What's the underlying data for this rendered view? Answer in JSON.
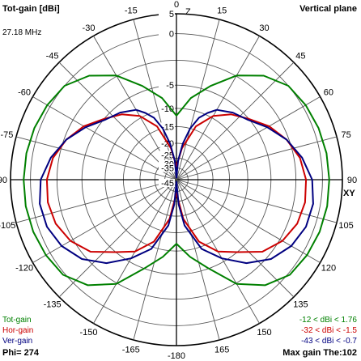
{
  "header": {
    "title": "Tot-gain [dBi]",
    "frequency": "27.18 MHz",
    "plane": "Vertical plane"
  },
  "footer": {
    "phi": "Phi= 274",
    "max_gain": "Max gain The:102"
  },
  "legend": [
    {
      "name": "Tot-gain",
      "range": "-12 < dBi < 1.76",
      "color": "#008000"
    },
    {
      "name": "Hor-gain",
      "range": "-32 < dBi < -1.5",
      "color": "#cc0000"
    },
    {
      "name": "Ver-gain",
      "range": "-43 < dBi < -0.7",
      "color": "#000080"
    }
  ],
  "chart_data": {
    "type": "polar",
    "title": "Tot-gain [dBi]",
    "axis_labels": {
      "z": "Z",
      "xy": "XY"
    },
    "radial_scale_dbi": [
      5,
      0,
      -5,
      -10,
      -15,
      -20,
      -25,
      -30,
      -35,
      -45
    ],
    "radial_labels": [
      "5",
      "0",
      "-5",
      "-10",
      "-15",
      "-20",
      "-25",
      "-30",
      "-35",
      "-45"
    ],
    "angle_labels": [
      "0",
      "15",
      "30",
      "45",
      "60",
      "75",
      "90",
      "105",
      "120",
      "135",
      "150",
      "165",
      "-180",
      "-165",
      "-150",
      "-135",
      "-120",
      "-105",
      "-90",
      "-75",
      "-60",
      "-45",
      "-30",
      "-15"
    ],
    "angle_label_values": [
      0,
      15,
      30,
      45,
      60,
      75,
      90,
      105,
      120,
      135,
      150,
      165,
      180,
      -165,
      -150,
      -135,
      -120,
      -105,
      -90,
      -75,
      -60,
      -45,
      -30,
      -15
    ],
    "grid": true,
    "series": [
      {
        "name": "Tot-gain",
        "color": "#008000",
        "theta_deg": [
          0,
          10,
          20,
          30,
          40,
          50,
          60,
          70,
          80,
          90,
          100,
          110,
          120,
          130,
          140,
          150,
          160,
          170,
          180
        ],
        "gain_dbi": [
          -12,
          -7.5,
          -4.5,
          -2.5,
          -1,
          0,
          0.8,
          1.3,
          1.6,
          1.7,
          1.76,
          1.6,
          1.2,
          0.5,
          -0.8,
          -2.5,
          -5,
          -8.5,
          -12
        ]
      },
      {
        "name": "Hor-gain",
        "color": "#cc0000",
        "theta_deg": [
          0,
          10,
          20,
          30,
          40,
          50,
          60,
          70,
          80,
          90,
          100,
          110,
          120,
          130,
          140,
          150,
          160,
          170,
          180
        ],
        "gain_dbi": [
          -32,
          -22,
          -14,
          -9.5,
          -7,
          -5,
          -3.8,
          -2.8,
          -2,
          -1.6,
          -1.5,
          -1.7,
          -2.3,
          -3.3,
          -5,
          -7.5,
          -11.5,
          -19,
          -32
        ]
      },
      {
        "name": "Ver-gain",
        "color": "#000080",
        "theta_deg": [
          0,
          5,
          10,
          15,
          20,
          25,
          30,
          40,
          50,
          60,
          70,
          80,
          90,
          100,
          110,
          120,
          130,
          140,
          150,
          160,
          170,
          175,
          180
        ],
        "gain_dbi": [
          -43,
          -28,
          -20,
          -15,
          -11.5,
          -9.5,
          -8,
          -6.5,
          -5.3,
          -4,
          -2.8,
          -1.8,
          -1,
          -0.7,
          -0.8,
          -1.3,
          -2.2,
          -3.6,
          -5.8,
          -9.5,
          -17,
          -25,
          -43
        ]
      }
    ]
  }
}
